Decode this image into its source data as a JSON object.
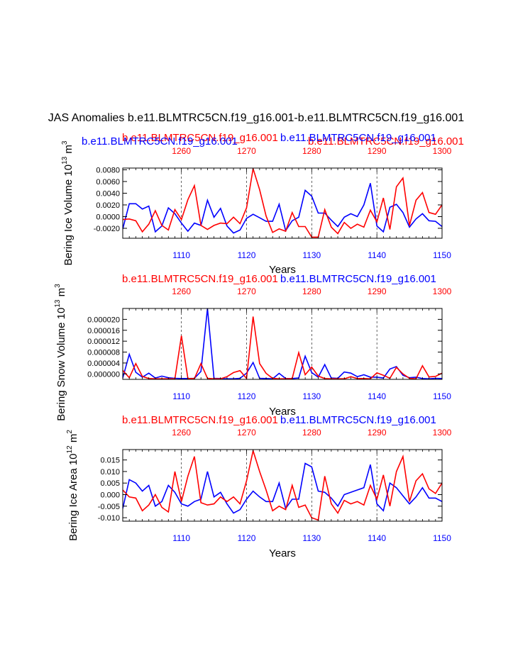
{
  "title": "JAS Anomalies b.e11.BLMTRC5CN.f19_g16.001-b.e11.BLMTRC5CN.f19_g16.001",
  "colors": {
    "blue": "#0000ff",
    "red": "#ff0000",
    "black": "#000000"
  },
  "chart_data": [
    {
      "type": "line",
      "panel": "ice-volume",
      "label_red_a": "b.e11.BLMTRC5CN.f19_g16.001",
      "label_red_b": "b.e11.BLMTRC5CN.f19_g16.001",
      "label_blue_a": "b.e11.BLMTRC5CN.f19_g16.001",
      "label_blue_b": "b.e11.BLMTRC5CN.f19_g16.001",
      "ylabel_main": "Bering Ice Volume 10",
      "ylabel_exp": "13",
      "ylabel_unit": "m",
      "ylabel_unit_exp": "3",
      "xlabel": "Years",
      "xlim_blue": [
        1101,
        1150
      ],
      "xlim_red": [
        1251,
        1300
      ],
      "ylim": [
        -0.0037,
        0.0083
      ],
      "yticks": [
        -0.002,
        0.0,
        0.002,
        0.004,
        0.006,
        0.008
      ],
      "ytick_labels": [
        "-0.0020",
        "0.0000",
        "0.0020",
        "0.0040",
        "0.0060",
        "0.0080"
      ],
      "xticks_blue": [
        1110,
        1120,
        1130,
        1140,
        1150
      ],
      "xticks_red": [
        1260,
        1270,
        1280,
        1290,
        1300
      ],
      "series": [
        {
          "name": "blue",
          "color": "#0000ff",
          "values": [
            -0.0021,
            0.0022,
            0.0022,
            0.0013,
            0.0018,
            -0.0026,
            -0.0016,
            0.0015,
            0.0005,
            -0.0011,
            -0.0025,
            -0.0011,
            -0.0015,
            0.0028,
            -0.0001,
            0.0014,
            -0.0016,
            -0.0028,
            -0.0023,
            -0.0003,
            0.0004,
            -0.0002,
            -0.0008,
            -0.0008,
            0.0021,
            -0.0024,
            -0.0007,
            -0.0001,
            0.0045,
            0.0035,
            0.0006,
            0.0006,
            -0.0006,
            -0.0017,
            -0.0001,
            0.0005,
            0.0,
            0.002,
            0.0057,
            -0.0016,
            -0.0026,
            0.0016,
            0.0021,
            0.0007,
            -0.0018,
            -0.0004,
            0.0005,
            -0.0007,
            -0.0008,
            -0.0017
          ]
        },
        {
          "name": "red",
          "color": "#ff0000",
          "values": [
            -0.0005,
            -0.0004,
            -0.0007,
            -0.0026,
            -0.0013,
            0.001,
            -0.0015,
            -0.0023,
            0.0012,
            -0.0005,
            0.0029,
            0.0053,
            -0.0015,
            -0.0022,
            -0.0015,
            -0.0011,
            -0.0012,
            -0.0001,
            -0.0012,
            0.0015,
            0.0082,
            0.0046,
            0.0001,
            -0.0027,
            -0.0021,
            -0.0025,
            0.0007,
            -0.0017,
            -0.0017,
            -0.0035,
            -0.0035,
            0.0012,
            -0.0018,
            -0.0029,
            -0.001,
            -0.002,
            -0.0013,
            -0.0018,
            0.0011,
            -0.0009,
            0.0032,
            -0.0022,
            0.0051,
            0.0066,
            -0.0015,
            0.0028,
            0.0041,
            0.0007,
            0.0004,
            0.002
          ]
        }
      ]
    },
    {
      "type": "line",
      "panel": "snow-volume",
      "label_red_a": "b.e11.BLMTRC5CN.f19_g16.001",
      "label_blue_a": "b.e11.BLMTRC5CN.f19_g16.001",
      "ylabel_main": "Bering Snow Volume 10",
      "ylabel_exp": "13",
      "ylabel_unit": "m",
      "ylabel_unit_exp": "3",
      "xlabel": "Years",
      "xlim_blue": [
        1101,
        1150
      ],
      "xlim_red": [
        1251,
        1300
      ],
      "ylim": [
        -2e-06,
        2.4e-05
      ],
      "yticks": [
        0.0,
        4e-06,
        8e-06,
        1.2e-05,
        1.6e-05,
        2e-05
      ],
      "ytick_labels": [
        "0.000000",
        "0.000004",
        "0.000008",
        "0.000012",
        "0.000016",
        "0.000020"
      ],
      "xticks_blue": [
        1110,
        1120,
        1130,
        1140,
        1150
      ],
      "xticks_red": [
        1260,
        1270,
        1280,
        1290,
        1300
      ],
      "series": [
        {
          "name": "blue",
          "color": "#0000ff",
          "values": [
            -1.5e-06,
            7.2e-06,
            6e-07,
            -1.2e-06,
            3e-07,
            -1.5e-06,
            -8e-07,
            -1.4e-06,
            -1.6e-06,
            -1.7e-06,
            -1.7e-06,
            -1.6e-06,
            9e-07,
            2.4e-05,
            -1.6e-06,
            -1.7e-06,
            -1.8e-06,
            -1.8e-06,
            -1.6e-06,
            3e-07,
            4.2e-06,
            -1.6e-06,
            -1.7e-06,
            -1.8e-06,
            2e-07,
            -1.7e-06,
            -1.7e-06,
            -1.5e-06,
            6.5e-06,
            5e-07,
            -1.2e-06,
            3.4e-06,
            -1.5e-06,
            -1.6e-06,
            7e-07,
            3e-07,
            -1e-06,
            -3e-07,
            -1.2e-06,
            -1.2e-06,
            -1.5e-06,
            1.8e-06,
            2.7e-06,
            -5e-07,
            -1.4e-06,
            -1.2e-06,
            -1.7e-06,
            -1.8e-06,
            -1.6e-06,
            -1.7e-06
          ]
        },
        {
          "name": "red",
          "color": "#ff0000",
          "values": [
            1.3e-06,
            -1.4e-06,
            3.8e-06,
            -9e-07,
            -1.7e-06,
            -1.8e-06,
            -1.8e-06,
            -1.8e-06,
            -1.8e-06,
            1.4e-05,
            -1.7e-06,
            -1.7e-06,
            3.8e-06,
            -1.6e-06,
            -1.8e-06,
            -1.8e-06,
            -1e-06,
            5e-07,
            1.2e-06,
            -1.7e-06,
            2.1e-05,
            3.8e-06,
            2e-07,
            -1.6e-06,
            -1.8e-06,
            -1.8e-06,
            -1.7e-06,
            7.8e-06,
            -3e-07,
            2.5e-06,
            -8e-07,
            -1.7e-06,
            -1.8e-06,
            -1.8e-06,
            -1.8e-06,
            -1e-06,
            -1.7e-06,
            -1.7e-06,
            -1.8e-06,
            4e-07,
            -5e-07,
            -1.6e-06,
            2.4e-06,
            0.0,
            -1.6e-06,
            -1.8e-06,
            3e-06,
            -1.1e-06,
            -9e-07,
            3e-07
          ]
        }
      ]
    },
    {
      "type": "line",
      "panel": "ice-area",
      "label_red_a": "b.e11.BLMTRC5CN.f19_g16.001",
      "label_blue_a": "b.e11.BLMTRC5CN.f19_g16.001",
      "ylabel_main": "Bering Ice Area 10",
      "ylabel_exp": "12",
      "ylabel_unit": "m",
      "ylabel_unit_exp": "2",
      "xlabel": "Years",
      "xlim_blue": [
        1101,
        1150
      ],
      "xlim_red": [
        1251,
        1300
      ],
      "ylim": [
        -0.0115,
        0.0195
      ],
      "yticks": [
        -0.01,
        -0.005,
        0.0,
        0.005,
        0.01,
        0.015
      ],
      "ytick_labels": [
        "-0.010",
        "-0.005",
        "0.000",
        "0.005",
        "0.010",
        "0.015"
      ],
      "xticks_blue": [
        1110,
        1120,
        1130,
        1140,
        1150
      ],
      "xticks_red": [
        1260,
        1270,
        1280,
        1290,
        1300
      ],
      "series": [
        {
          "name": "blue",
          "color": "#0000ff",
          "values": [
            -0.006,
            0.0065,
            0.005,
            0.0015,
            0.004,
            -0.005,
            -0.003,
            0.004,
            0.001,
            -0.004,
            -0.005,
            -0.003,
            -0.002,
            0.01,
            -0.001,
            0.001,
            -0.004,
            -0.008,
            -0.0065,
            -0.002,
            0.0015,
            -0.001,
            -0.003,
            -0.003,
            0.005,
            -0.006,
            -0.002,
            -0.002,
            0.0135,
            0.012,
            0.0015,
            0.001,
            -0.0015,
            -0.005,
            0.0,
            0.001,
            0.002,
            0.003,
            0.013,
            -0.004,
            -0.007,
            0.005,
            0.003,
            -0.0005,
            -0.004,
            -0.001,
            0.003,
            -0.0015,
            -0.0015,
            -0.003
          ]
        },
        {
          "name": "red",
          "color": "#ff0000",
          "values": [
            0.002,
            -0.001,
            -0.0015,
            -0.007,
            -0.0045,
            0.0,
            -0.0055,
            -0.0075,
            0.01,
            -0.003,
            0.008,
            0.0165,
            -0.0035,
            -0.0045,
            -0.004,
            -0.001,
            -0.003,
            -0.001,
            -0.004,
            0.006,
            0.019,
            0.01,
            0.002,
            -0.007,
            -0.005,
            -0.0065,
            0.004,
            -0.0055,
            -0.0045,
            -0.01,
            -0.011,
            0.008,
            -0.004,
            -0.008,
            -0.0025,
            -0.004,
            -0.003,
            -0.0045,
            0.004,
            -0.002,
            0.0085,
            -0.005,
            0.01,
            0.0165,
            -0.003,
            0.006,
            0.009,
            0.0025,
            0.0005,
            0.005
          ]
        }
      ]
    }
  ]
}
